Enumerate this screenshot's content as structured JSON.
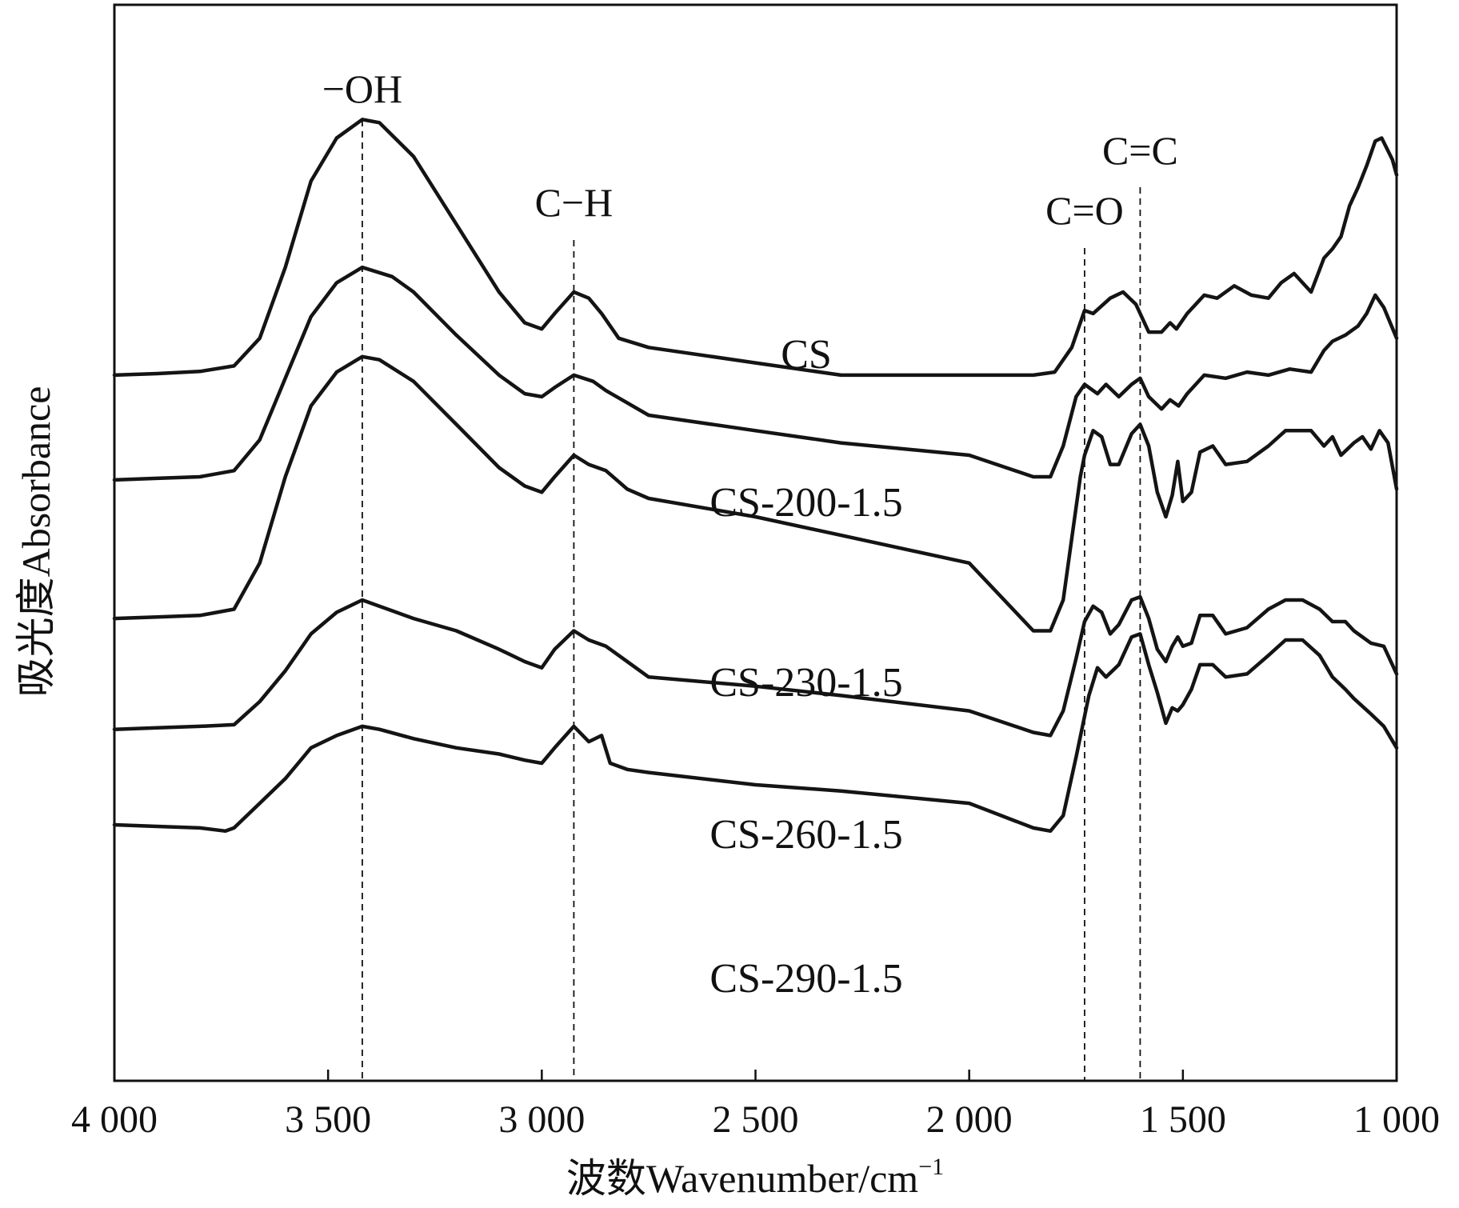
{
  "chart_data": {
    "type": "line",
    "xlabel": "波数Wavenumber/cm",
    "xlabel_sup": "−1",
    "ylabel": "吸光度Absorbance",
    "xlim": [
      4000,
      1000
    ],
    "x_reversed": true,
    "y_ticks": false,
    "x_ticks": [
      {
        "value": 4000,
        "label": "4 000"
      },
      {
        "value": 3500,
        "label": "3 500"
      },
      {
        "value": 3000,
        "label": "3 000"
      },
      {
        "value": 2500,
        "label": "2 500"
      },
      {
        "value": 2000,
        "label": "2 000"
      },
      {
        "value": 1500,
        "label": "1 500"
      },
      {
        "value": 1000,
        "label": "1 000"
      }
    ],
    "peak_markers": [
      {
        "label": "−OH",
        "x": 3420
      },
      {
        "label": "C−H",
        "x": 2925
      },
      {
        "label": "C=O",
        "x": 1730
      },
      {
        "label": "C=C",
        "x": 1600
      }
    ],
    "series": [
      {
        "name": "CS",
        "points": [
          [
            4000,
            0.73
          ],
          [
            3900,
            0.735
          ],
          [
            3800,
            0.742
          ],
          [
            3720,
            0.76
          ],
          [
            3660,
            0.85
          ],
          [
            3600,
            1.08
          ],
          [
            3540,
            1.36
          ],
          [
            3480,
            1.5
          ],
          [
            3420,
            1.56
          ],
          [
            3380,
            1.55
          ],
          [
            3300,
            1.44
          ],
          [
            3200,
            1.22
          ],
          [
            3100,
            1.0
          ],
          [
            3040,
            0.9
          ],
          [
            3000,
            0.88
          ],
          [
            2970,
            0.93
          ],
          [
            2925,
            1.0
          ],
          [
            2890,
            0.98
          ],
          [
            2860,
            0.93
          ],
          [
            2820,
            0.85
          ],
          [
            2750,
            0.82
          ],
          [
            2500,
            0.77
          ],
          [
            2300,
            0.73
          ],
          [
            2000,
            0.73
          ],
          [
            1850,
            0.73
          ],
          [
            1800,
            0.74
          ],
          [
            1760,
            0.82
          ],
          [
            1730,
            0.94
          ],
          [
            1710,
            0.93
          ],
          [
            1670,
            0.98
          ],
          [
            1640,
            1.0
          ],
          [
            1610,
            0.96
          ],
          [
            1580,
            0.87
          ],
          [
            1550,
            0.87
          ],
          [
            1530,
            0.9
          ],
          [
            1515,
            0.88
          ],
          [
            1490,
            0.93
          ],
          [
            1450,
            0.99
          ],
          [
            1420,
            0.98
          ],
          [
            1380,
            1.02
          ],
          [
            1340,
            0.99
          ],
          [
            1300,
            0.98
          ],
          [
            1270,
            1.03
          ],
          [
            1240,
            1.06
          ],
          [
            1200,
            1.0
          ],
          [
            1170,
            1.11
          ],
          [
            1150,
            1.14
          ],
          [
            1130,
            1.18
          ],
          [
            1110,
            1.28
          ],
          [
            1090,
            1.34
          ],
          [
            1070,
            1.41
          ],
          [
            1050,
            1.49
          ],
          [
            1035,
            1.5
          ],
          [
            1010,
            1.43
          ],
          [
            1000,
            1.38
          ]
        ]
      },
      {
        "name": "CS-200-1.5",
        "points": [
          [
            4000,
            0.39
          ],
          [
            3900,
            0.395
          ],
          [
            3800,
            0.4
          ],
          [
            3720,
            0.42
          ],
          [
            3660,
            0.52
          ],
          [
            3600,
            0.72
          ],
          [
            3540,
            0.92
          ],
          [
            3480,
            1.03
          ],
          [
            3420,
            1.08
          ],
          [
            3350,
            1.05
          ],
          [
            3300,
            1.0
          ],
          [
            3200,
            0.86
          ],
          [
            3100,
            0.73
          ],
          [
            3040,
            0.67
          ],
          [
            3000,
            0.66
          ],
          [
            2970,
            0.69
          ],
          [
            2925,
            0.73
          ],
          [
            2880,
            0.71
          ],
          [
            2850,
            0.68
          ],
          [
            2800,
            0.64
          ],
          [
            2750,
            0.6
          ],
          [
            2500,
            0.55
          ],
          [
            2300,
            0.51
          ],
          [
            2000,
            0.47
          ],
          [
            1850,
            0.4
          ],
          [
            1810,
            0.4
          ],
          [
            1780,
            0.5
          ],
          [
            1750,
            0.66
          ],
          [
            1730,
            0.7
          ],
          [
            1700,
            0.67
          ],
          [
            1680,
            0.7
          ],
          [
            1650,
            0.66
          ],
          [
            1620,
            0.7
          ],
          [
            1600,
            0.72
          ],
          [
            1580,
            0.66
          ],
          [
            1550,
            0.62
          ],
          [
            1530,
            0.65
          ],
          [
            1510,
            0.63
          ],
          [
            1490,
            0.67
          ],
          [
            1450,
            0.73
          ],
          [
            1400,
            0.72
          ],
          [
            1350,
            0.74
          ],
          [
            1300,
            0.73
          ],
          [
            1250,
            0.75
          ],
          [
            1200,
            0.74
          ],
          [
            1170,
            0.81
          ],
          [
            1150,
            0.84
          ],
          [
            1120,
            0.86
          ],
          [
            1090,
            0.89
          ],
          [
            1070,
            0.93
          ],
          [
            1050,
            0.99
          ],
          [
            1030,
            0.95
          ],
          [
            1000,
            0.85
          ]
        ]
      },
      {
        "name": "CS-230-1.5",
        "points": [
          [
            4000,
            -0.06
          ],
          [
            3900,
            -0.055
          ],
          [
            3800,
            -0.05
          ],
          [
            3720,
            -0.03
          ],
          [
            3660,
            0.12
          ],
          [
            3600,
            0.4
          ],
          [
            3540,
            0.63
          ],
          [
            3480,
            0.74
          ],
          [
            3420,
            0.79
          ],
          [
            3380,
            0.78
          ],
          [
            3300,
            0.71
          ],
          [
            3200,
            0.57
          ],
          [
            3100,
            0.43
          ],
          [
            3040,
            0.37
          ],
          [
            3000,
            0.35
          ],
          [
            2970,
            0.4
          ],
          [
            2925,
            0.47
          ],
          [
            2890,
            0.44
          ],
          [
            2850,
            0.42
          ],
          [
            2800,
            0.36
          ],
          [
            2750,
            0.33
          ],
          [
            2500,
            0.27
          ],
          [
            2300,
            0.21
          ],
          [
            2000,
            0.12
          ],
          [
            1850,
            -0.1
          ],
          [
            1810,
            -0.1
          ],
          [
            1780,
            0.0
          ],
          [
            1760,
            0.2
          ],
          [
            1740,
            0.4
          ],
          [
            1730,
            0.47
          ],
          [
            1710,
            0.55
          ],
          [
            1690,
            0.53
          ],
          [
            1670,
            0.44
          ],
          [
            1650,
            0.44
          ],
          [
            1620,
            0.54
          ],
          [
            1600,
            0.57
          ],
          [
            1580,
            0.5
          ],
          [
            1560,
            0.35
          ],
          [
            1540,
            0.27
          ],
          [
            1525,
            0.34
          ],
          [
            1512,
            0.45
          ],
          [
            1500,
            0.32
          ],
          [
            1480,
            0.35
          ],
          [
            1460,
            0.48
          ],
          [
            1430,
            0.5
          ],
          [
            1400,
            0.44
          ],
          [
            1350,
            0.45
          ],
          [
            1300,
            0.5
          ],
          [
            1260,
            0.55
          ],
          [
            1200,
            0.55
          ],
          [
            1170,
            0.5
          ],
          [
            1150,
            0.53
          ],
          [
            1130,
            0.47
          ],
          [
            1100,
            0.51
          ],
          [
            1080,
            0.53
          ],
          [
            1060,
            0.49
          ],
          [
            1040,
            0.55
          ],
          [
            1020,
            0.51
          ],
          [
            1000,
            0.36
          ]
        ]
      },
      {
        "name": "CS-260-1.5",
        "points": [
          [
            4000,
            -0.42
          ],
          [
            3900,
            -0.415
          ],
          [
            3800,
            -0.41
          ],
          [
            3720,
            -0.405
          ],
          [
            3660,
            -0.33
          ],
          [
            3600,
            -0.23
          ],
          [
            3540,
            -0.11
          ],
          [
            3480,
            -0.04
          ],
          [
            3420,
            0.0
          ],
          [
            3380,
            -0.02
          ],
          [
            3300,
            -0.06
          ],
          [
            3200,
            -0.1
          ],
          [
            3100,
            -0.16
          ],
          [
            3040,
            -0.2
          ],
          [
            3000,
            -0.22
          ],
          [
            2970,
            -0.16
          ],
          [
            2925,
            -0.1
          ],
          [
            2890,
            -0.13
          ],
          [
            2850,
            -0.15
          ],
          [
            2800,
            -0.2
          ],
          [
            2750,
            -0.25
          ],
          [
            2500,
            -0.28
          ],
          [
            2300,
            -0.31
          ],
          [
            2000,
            -0.36
          ],
          [
            1850,
            -0.43
          ],
          [
            1810,
            -0.44
          ],
          [
            1780,
            -0.36
          ],
          [
            1750,
            -0.19
          ],
          [
            1730,
            -0.07
          ],
          [
            1710,
            -0.02
          ],
          [
            1690,
            -0.04
          ],
          [
            1670,
            -0.11
          ],
          [
            1650,
            -0.08
          ],
          [
            1620,
            0.0
          ],
          [
            1600,
            0.01
          ],
          [
            1580,
            -0.06
          ],
          [
            1560,
            -0.16
          ],
          [
            1540,
            -0.2
          ],
          [
            1525,
            -0.15
          ],
          [
            1512,
            -0.12
          ],
          [
            1500,
            -0.15
          ],
          [
            1480,
            -0.14
          ],
          [
            1460,
            -0.05
          ],
          [
            1430,
            -0.05
          ],
          [
            1400,
            -0.11
          ],
          [
            1350,
            -0.09
          ],
          [
            1300,
            -0.03
          ],
          [
            1260,
            0.0
          ],
          [
            1220,
            0.0
          ],
          [
            1180,
            -0.03
          ],
          [
            1150,
            -0.07
          ],
          [
            1120,
            -0.07
          ],
          [
            1100,
            -0.1
          ],
          [
            1060,
            -0.14
          ],
          [
            1030,
            -0.15
          ],
          [
            1000,
            -0.24
          ]
        ]
      },
      {
        "name": "CS-290-1.5",
        "points": [
          [
            4000,
            -0.73
          ],
          [
            3900,
            -0.735
          ],
          [
            3800,
            -0.74
          ],
          [
            3740,
            -0.75
          ],
          [
            3720,
            -0.74
          ],
          [
            3660,
            -0.66
          ],
          [
            3600,
            -0.58
          ],
          [
            3540,
            -0.48
          ],
          [
            3480,
            -0.44
          ],
          [
            3420,
            -0.41
          ],
          [
            3380,
            -0.42
          ],
          [
            3300,
            -0.45
          ],
          [
            3200,
            -0.48
          ],
          [
            3100,
            -0.5
          ],
          [
            3040,
            -0.52
          ],
          [
            3000,
            -0.53
          ],
          [
            2970,
            -0.48
          ],
          [
            2925,
            -0.41
          ],
          [
            2890,
            -0.46
          ],
          [
            2860,
            -0.44
          ],
          [
            2840,
            -0.53
          ],
          [
            2800,
            -0.55
          ],
          [
            2750,
            -0.56
          ],
          [
            2500,
            -0.6
          ],
          [
            2300,
            -0.62
          ],
          [
            2000,
            -0.66
          ],
          [
            1850,
            -0.74
          ],
          [
            1810,
            -0.75
          ],
          [
            1780,
            -0.7
          ],
          [
            1750,
            -0.51
          ],
          [
            1720,
            -0.31
          ],
          [
            1700,
            -0.22
          ],
          [
            1680,
            -0.25
          ],
          [
            1650,
            -0.21
          ],
          [
            1620,
            -0.12
          ],
          [
            1600,
            -0.11
          ],
          [
            1580,
            -0.21
          ],
          [
            1560,
            -0.3
          ],
          [
            1540,
            -0.4
          ],
          [
            1525,
            -0.35
          ],
          [
            1512,
            -0.36
          ],
          [
            1500,
            -0.34
          ],
          [
            1480,
            -0.29
          ],
          [
            1460,
            -0.21
          ],
          [
            1430,
            -0.21
          ],
          [
            1400,
            -0.25
          ],
          [
            1350,
            -0.24
          ],
          [
            1300,
            -0.18
          ],
          [
            1260,
            -0.13
          ],
          [
            1220,
            -0.13
          ],
          [
            1180,
            -0.18
          ],
          [
            1150,
            -0.25
          ],
          [
            1120,
            -0.29
          ],
          [
            1100,
            -0.32
          ],
          [
            1060,
            -0.37
          ],
          [
            1030,
            -0.41
          ],
          [
            1000,
            -0.48
          ]
        ]
      }
    ]
  }
}
